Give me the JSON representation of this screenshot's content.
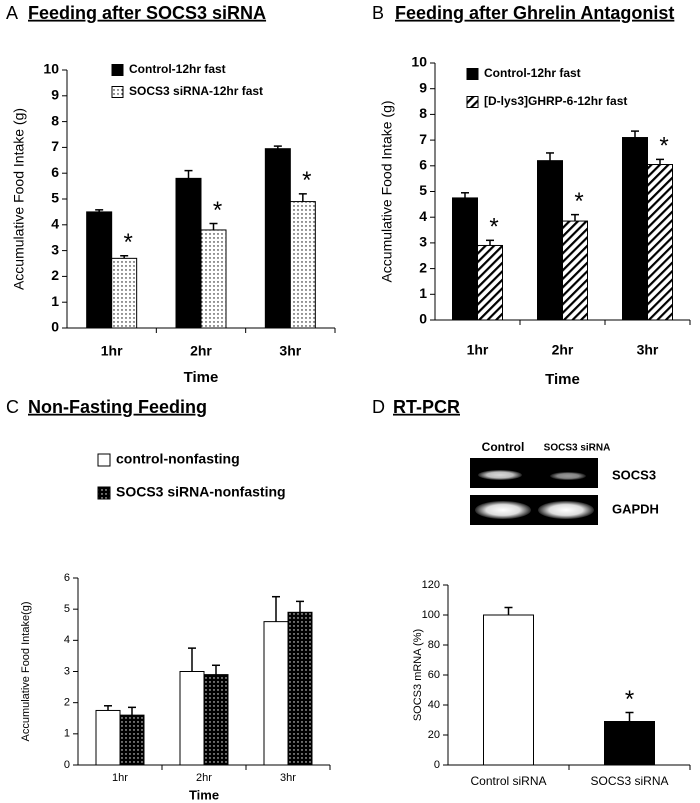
{
  "chart_data": [
    {
      "type": "bar",
      "panel_label": "A",
      "title": "Feeding after SOCS3 siRNA",
      "y_label": "Accumulative Food Intake (g)",
      "x_label": "Time",
      "categories": [
        "1hr",
        "2hr",
        "3hr"
      ],
      "series": [
        {
          "name": "Control-12hr fast",
          "color": "#000000",
          "values": [
            4.5,
            5.8,
            6.95
          ],
          "errors": [
            0.08,
            0.3,
            0.1
          ]
        },
        {
          "name": "SOCS3 siRNA-12hr fast",
          "color": "#ffffff",
          "pattern": "dots",
          "values": [
            2.7,
            3.8,
            4.9
          ],
          "errors": [
            0.1,
            0.25,
            0.3
          ],
          "significance": [
            "*",
            "*",
            "*"
          ]
        }
      ],
      "ylim": [
        0,
        10
      ],
      "yticks": [
        0,
        1,
        2,
        3,
        4,
        5,
        6,
        7,
        8,
        9,
        10
      ]
    },
    {
      "type": "bar",
      "panel_label": "B",
      "title": "Feeding after Ghrelin Antagonist",
      "y_label": "Accumulative Food Intake (g)",
      "x_label": "Time",
      "categories": [
        "1hr",
        "2hr",
        "3hr"
      ],
      "series": [
        {
          "name": "Control-12hr fast",
          "color": "#000000",
          "values": [
            4.75,
            6.2,
            7.1
          ],
          "errors": [
            0.2,
            0.3,
            0.25
          ]
        },
        {
          "name": "[D-lys3]GHRP-6-12hr fast",
          "color": "#ffffff",
          "pattern": "hatch",
          "values": [
            2.9,
            3.85,
            6.05
          ],
          "errors": [
            0.2,
            0.25,
            0.2
          ],
          "significance": [
            "*",
            "*",
            "*"
          ]
        }
      ],
      "ylim": [
        0,
        10
      ],
      "yticks": [
        0,
        1,
        2,
        3,
        4,
        5,
        6,
        7,
        8,
        9,
        10
      ]
    },
    {
      "type": "bar",
      "panel_label": "C",
      "title": "Non-Fasting Feeding",
      "y_label": "Accumulative Food Intake(g)",
      "x_label": "Time",
      "categories": [
        "1hr",
        "2hr",
        "3hr"
      ],
      "series": [
        {
          "name": "control-nonfasting",
          "color": "#ffffff",
          "values": [
            1.75,
            3.0,
            4.6
          ],
          "errors": [
            0.15,
            0.75,
            0.8
          ]
        },
        {
          "name": "SOCS3 siRNA-nonfasting",
          "color": "#000000",
          "pattern": "white-dots",
          "values": [
            1.6,
            2.9,
            4.9
          ],
          "errors": [
            0.25,
            0.3,
            0.35
          ]
        }
      ],
      "ylim": [
        0,
        6
      ],
      "yticks": [
        0,
        1,
        2,
        3,
        4,
        5,
        6
      ]
    },
    {
      "type": "bar",
      "panel_label": "D",
      "title": "RT-PCR",
      "y_label": "SOCS3 mRNA (%)",
      "categories": [
        "Control siRNA",
        "SOCS3 siRNA"
      ],
      "series": [
        {
          "color": "#ffffff",
          "values": [
            100,
            29
          ],
          "errors": [
            5,
            6
          ],
          "significance": [
            null,
            "*"
          ],
          "colors": [
            "#ffffff",
            "#000000"
          ]
        }
      ],
      "ylim": [
        0,
        120
      ],
      "yticks": [
        0,
        20,
        40,
        60,
        80,
        100,
        120
      ]
    }
  ],
  "gel": {
    "column_labels": [
      "Control",
      "SOCS3 siRNA"
    ],
    "row_labels": [
      "SOCS3",
      "GAPDH"
    ]
  }
}
